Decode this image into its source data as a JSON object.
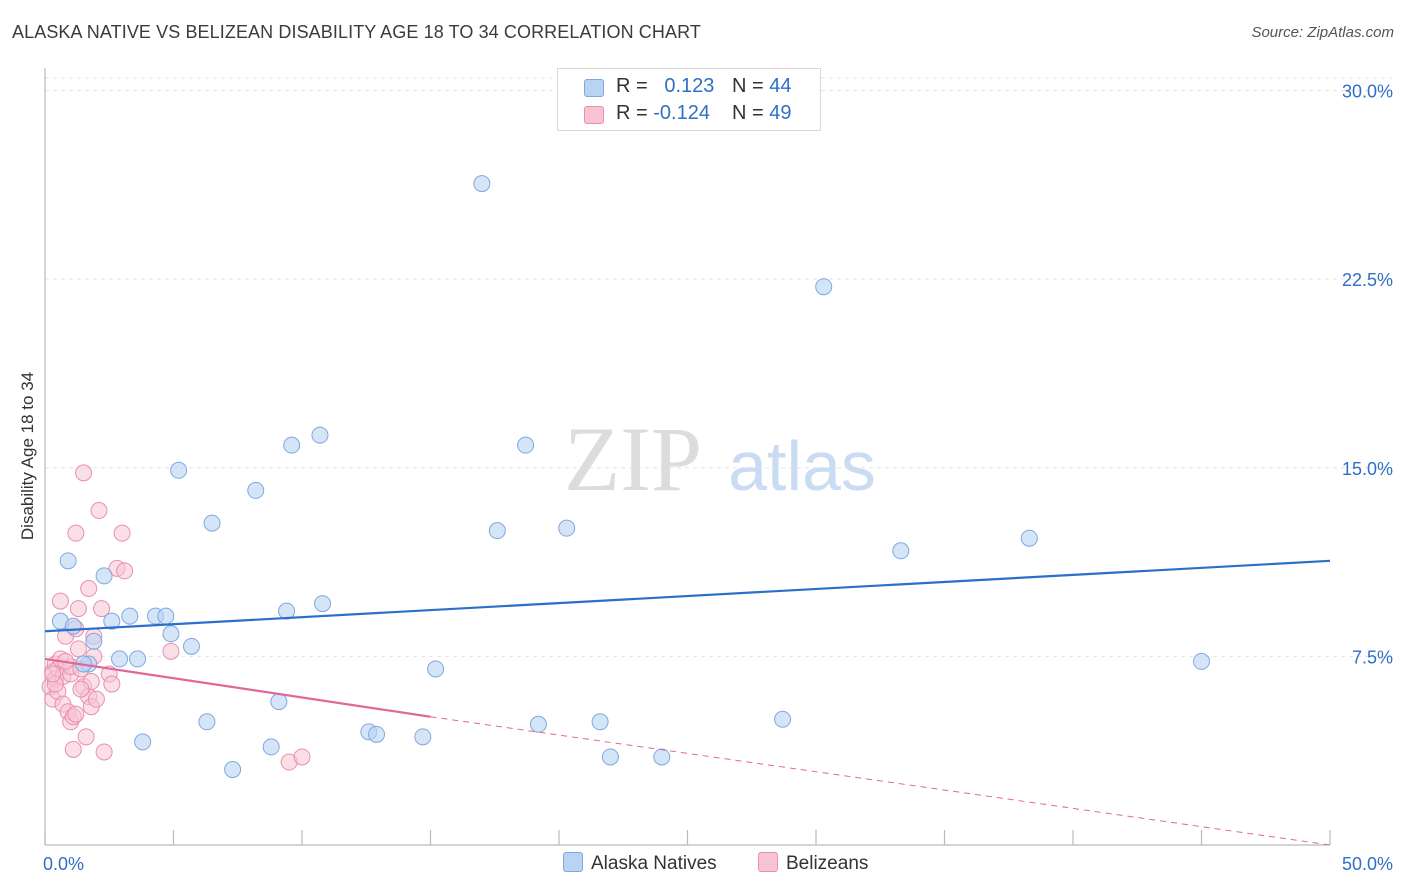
{
  "header": {
    "title": "ALASKA NATIVE VS BELIZEAN DISABILITY AGE 18 TO 34 CORRELATION CHART",
    "source": "Source: ZipAtlas.com"
  },
  "watermark": {
    "zip": "ZIP",
    "atlas": "atlas"
  },
  "legend_top": {
    "rows": [
      {
        "r_label": "R =",
        "r_value": "0.123",
        "n_label": "N =",
        "n_value": "44"
      },
      {
        "r_label": "R =",
        "r_value": "-0.124",
        "n_label": "N =",
        "n_value": "49"
      }
    ]
  },
  "legend_bottom": {
    "series1": "Alaska Natives",
    "series2": "Belizeans"
  },
  "colors": {
    "blue_fill": "#b9d3f3",
    "blue_stroke": "#7fa8de",
    "blue_line": "#2c6fc9",
    "pink_fill": "#f8c4d4",
    "pink_stroke": "#ea8fae",
    "pink_line": "#e0679a",
    "axis_text_blue": "#2f6fc6",
    "grid": "#e4e4e4"
  },
  "chart_data": {
    "type": "scatter",
    "title": "ALASKA NATIVE VS BELIZEAN DISABILITY AGE 18 TO 34 CORRELATION CHART",
    "xlabel": "",
    "ylabel": "Disability Age 18 to 34",
    "xlim": [
      0,
      50
    ],
    "ylim": [
      0,
      30.5
    ],
    "x_tick_labels": [
      "0.0%",
      "50.0%"
    ],
    "y_ticks": [
      7.5,
      15.0,
      22.5,
      30.0
    ],
    "y_tick_labels": [
      "7.5%",
      "15.0%",
      "22.5%",
      "30.0%"
    ],
    "legend_position": "bottom",
    "series": [
      {
        "name": "Alaska Natives",
        "R": 0.123,
        "N": 44,
        "trend": {
          "x": [
            0,
            50
          ],
          "y": [
            8.5,
            11.3
          ]
        },
        "points": [
          [
            0.6,
            8.9
          ],
          [
            0.9,
            11.3
          ],
          [
            1.1,
            8.7
          ],
          [
            1.7,
            7.2
          ],
          [
            1.9,
            8.1
          ],
          [
            2.3,
            10.7
          ],
          [
            2.6,
            8.9
          ],
          [
            2.9,
            7.4
          ],
          [
            3.3,
            9.1
          ],
          [
            3.6,
            7.4
          ],
          [
            3.8,
            4.1
          ],
          [
            4.3,
            9.1
          ],
          [
            4.7,
            9.1
          ],
          [
            4.9,
            8.4
          ],
          [
            5.2,
            14.9
          ],
          [
            5.7,
            7.9
          ],
          [
            6.3,
            4.9
          ],
          [
            6.5,
            12.8
          ],
          [
            7.3,
            3.0
          ],
          [
            8.2,
            14.1
          ],
          [
            8.8,
            3.9
          ],
          [
            9.1,
            5.7
          ],
          [
            9.4,
            9.3
          ],
          [
            9.6,
            15.9
          ],
          [
            10.7,
            16.3
          ],
          [
            10.8,
            9.6
          ],
          [
            12.6,
            4.5
          ],
          [
            12.9,
            4.4
          ],
          [
            14.7,
            4.3
          ],
          [
            15.2,
            7.0
          ],
          [
            17.0,
            26.3
          ],
          [
            17.6,
            12.5
          ],
          [
            18.7,
            15.9
          ],
          [
            19.2,
            4.8
          ],
          [
            20.3,
            12.6
          ],
          [
            21.6,
            4.9
          ],
          [
            22.0,
            3.5
          ],
          [
            24.0,
            3.5
          ],
          [
            28.7,
            5.0
          ],
          [
            30.3,
            22.2
          ],
          [
            33.3,
            11.7
          ],
          [
            38.3,
            12.2
          ],
          [
            45.0,
            7.3
          ],
          [
            1.5,
            7.2
          ]
        ]
      },
      {
        "name": "Belizeans",
        "R": -0.124,
        "N": 49,
        "trend": {
          "x": [
            0,
            15
          ],
          "y": [
            7.4,
            5.1
          ]
        },
        "trend_dashed": {
          "x": [
            15,
            50
          ],
          "y": [
            5.1,
            0.0
          ]
        },
        "points": [
          [
            0.2,
            6.3
          ],
          [
            0.3,
            5.8
          ],
          [
            0.3,
            6.9
          ],
          [
            0.4,
            7.2
          ],
          [
            0.4,
            6.6
          ],
          [
            0.5,
            7.0
          ],
          [
            0.5,
            6.1
          ],
          [
            0.6,
            9.7
          ],
          [
            0.6,
            7.4
          ],
          [
            0.7,
            5.6
          ],
          [
            0.7,
            6.7
          ],
          [
            0.8,
            8.3
          ],
          [
            0.9,
            5.3
          ],
          [
            1.0,
            6.8
          ],
          [
            1.0,
            4.9
          ],
          [
            1.0,
            7.1
          ],
          [
            1.1,
            3.8
          ],
          [
            1.1,
            5.1
          ],
          [
            1.2,
            5.2
          ],
          [
            1.2,
            8.6
          ],
          [
            1.2,
            12.4
          ],
          [
            1.3,
            9.4
          ],
          [
            1.3,
            7.8
          ],
          [
            1.4,
            7.0
          ],
          [
            1.5,
            14.8
          ],
          [
            1.5,
            6.3
          ],
          [
            1.6,
            4.3
          ],
          [
            1.7,
            5.9
          ],
          [
            1.7,
            10.2
          ],
          [
            1.8,
            6.5
          ],
          [
            1.8,
            5.5
          ],
          [
            1.9,
            8.3
          ],
          [
            2.0,
            5.8
          ],
          [
            2.1,
            13.3
          ],
          [
            2.2,
            9.4
          ],
          [
            2.3,
            3.7
          ],
          [
            2.5,
            6.8
          ],
          [
            2.6,
            6.4
          ],
          [
            2.8,
            11.0
          ],
          [
            3.0,
            12.4
          ],
          [
            3.1,
            10.9
          ],
          [
            4.9,
            7.7
          ],
          [
            9.5,
            3.3
          ],
          [
            10.0,
            3.5
          ],
          [
            0.4,
            6.4
          ],
          [
            0.8,
            7.3
          ],
          [
            1.4,
            6.2
          ],
          [
            1.9,
            7.5
          ],
          [
            0.3,
            6.8
          ]
        ]
      }
    ]
  }
}
